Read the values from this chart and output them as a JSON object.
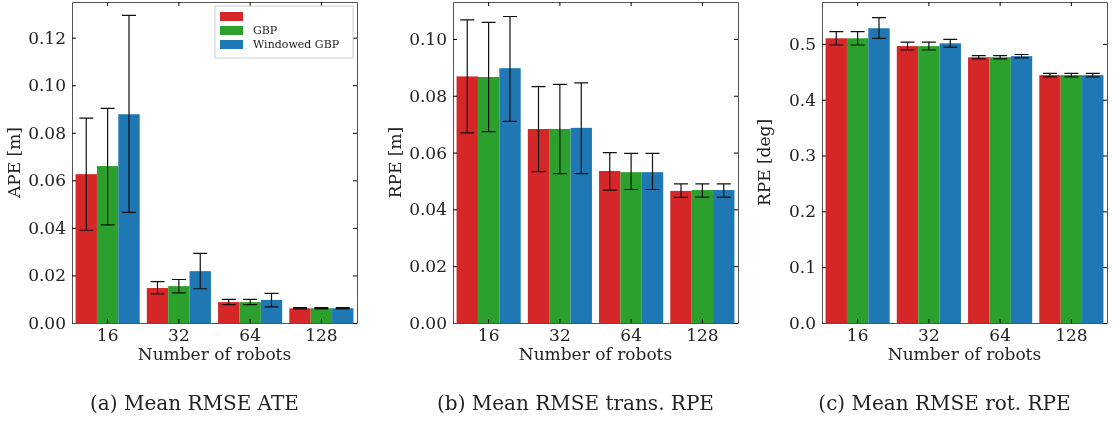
{
  "chart_data": [
    {
      "type": "bar",
      "title": "(a) Mean RMSE ATE",
      "xlabel": "Number of robots",
      "ylabel": "APE [m]",
      "categories": [
        "16",
        "32",
        "64",
        "128"
      ],
      "ylim": [
        0,
        0.135
      ],
      "yticks": [
        {
          "value": 0,
          "label": "0.00"
        },
        {
          "value": 0.02,
          "label": "0.02"
        },
        {
          "value": 0.04,
          "label": "0.04"
        },
        {
          "value": 0.06,
          "label": "0.06"
        },
        {
          "value": 0.08,
          "label": "0.08"
        },
        {
          "value": 0.1,
          "label": "0.10"
        },
        {
          "value": 0.12,
          "label": "0.12"
        }
      ],
      "legend": "top right",
      "series": [
        {
          "color": "#d62728",
          "values": [
            0.0626,
            0.0147,
            0.0088,
            0.0062
          ],
          "errors": [
            [
              0.039,
              0.0862
            ],
            [
              0.0122,
              0.0174
            ],
            [
              0.0077,
              0.0099
            ],
            [
              0.0059,
              0.0065
            ]
          ]
        },
        {
          "name": "GBP",
          "color": "#2ca02c",
          "values": [
            0.066,
            0.0155,
            0.0088,
            0.0062
          ],
          "errors": [
            [
              0.0413,
              0.0903
            ],
            [
              0.0127,
              0.0183
            ],
            [
              0.0077,
              0.0099
            ],
            [
              0.0059,
              0.0065
            ]
          ]
        },
        {
          "name": "Windowed GBP",
          "color": "#1f77b4",
          "values": [
            0.0878,
            0.0218,
            0.0097,
            0.0062
          ],
          "errors": [
            [
              0.0465,
              0.1294
            ],
            [
              0.0144,
              0.0293
            ],
            [
              0.0068,
              0.0125
            ],
            [
              0.0059,
              0.0065
            ]
          ]
        }
      ]
    },
    {
      "type": "bar",
      "title": "(b) Mean RMSE trans. RPE",
      "xlabel": "Number of robots",
      "ylabel": "RPE [m]",
      "categories": [
        "16",
        "32",
        "64",
        "128"
      ],
      "ylim": [
        0,
        0.113
      ],
      "yticks": [
        {
          "value": 0,
          "label": "0.00"
        },
        {
          "value": 0.02,
          "label": "0.02"
        },
        {
          "value": 0.04,
          "label": "0.04"
        },
        {
          "value": 0.06,
          "label": "0.06"
        },
        {
          "value": 0.08,
          "label": "0.08"
        },
        {
          "value": 0.1,
          "label": "0.10"
        }
      ],
      "series": [
        {
          "color": "#d62728",
          "values": [
            0.0868,
            0.0683,
            0.0535,
            0.0465
          ],
          "errors": [
            [
              0.0669,
              0.1067
            ],
            [
              0.0533,
              0.0832
            ],
            [
              0.0468,
              0.06
            ],
            [
              0.0442,
              0.049
            ]
          ]
        },
        {
          "color": "#2ca02c",
          "values": [
            0.0866,
            0.0683,
            0.0531,
            0.0468
          ],
          "errors": [
            [
              0.0674,
              0.1058
            ],
            [
              0.0526,
              0.084
            ],
            [
              0.047,
              0.0597
            ],
            [
              0.0443,
              0.049
            ]
          ]
        },
        {
          "color": "#1f77b4",
          "values": [
            0.0897,
            0.0687,
            0.0531,
            0.0468
          ],
          "errors": [
            [
              0.071,
              0.1079
            ],
            [
              0.0526,
              0.0845
            ],
            [
              0.047,
              0.0597
            ],
            [
              0.0443,
              0.049
            ]
          ]
        }
      ]
    },
    {
      "type": "bar",
      "title": "(c) Mean RMSE rot. RPE",
      "xlabel": "Number of robots",
      "ylabel": "RPE [deg]",
      "categories": [
        "16",
        "32",
        "64",
        "128"
      ],
      "ylim": [
        0,
        0.575
      ],
      "yticks": [
        {
          "value": 0,
          "label": "0.0"
        },
        {
          "value": 0.1,
          "label": "0.1"
        },
        {
          "value": 0.2,
          "label": "0.2"
        },
        {
          "value": 0.3,
          "label": "0.3"
        },
        {
          "value": 0.4,
          "label": "0.4"
        },
        {
          "value": 0.5,
          "label": "0.5"
        }
      ],
      "series": [
        {
          "color": "#d62728",
          "values": [
            0.51,
            0.496,
            0.476,
            0.444
          ],
          "errors": [
            [
              0.498,
              0.522
            ],
            [
              0.489,
              0.503
            ],
            [
              0.473,
              0.479
            ],
            [
              0.441,
              0.447
            ]
          ]
        },
        {
          "color": "#2ca02c",
          "values": [
            0.51,
            0.496,
            0.476,
            0.444
          ],
          "errors": [
            [
              0.498,
              0.522
            ],
            [
              0.489,
              0.503
            ],
            [
              0.473,
              0.479
            ],
            [
              0.441,
              0.447
            ]
          ]
        },
        {
          "color": "#1f77b4",
          "values": [
            0.528,
            0.501,
            0.478,
            0.444
          ],
          "errors": [
            [
              0.51,
              0.547
            ],
            [
              0.494,
              0.508
            ],
            [
              0.475,
              0.481
            ],
            [
              0.441,
              0.447
            ]
          ]
        }
      ]
    }
  ]
}
